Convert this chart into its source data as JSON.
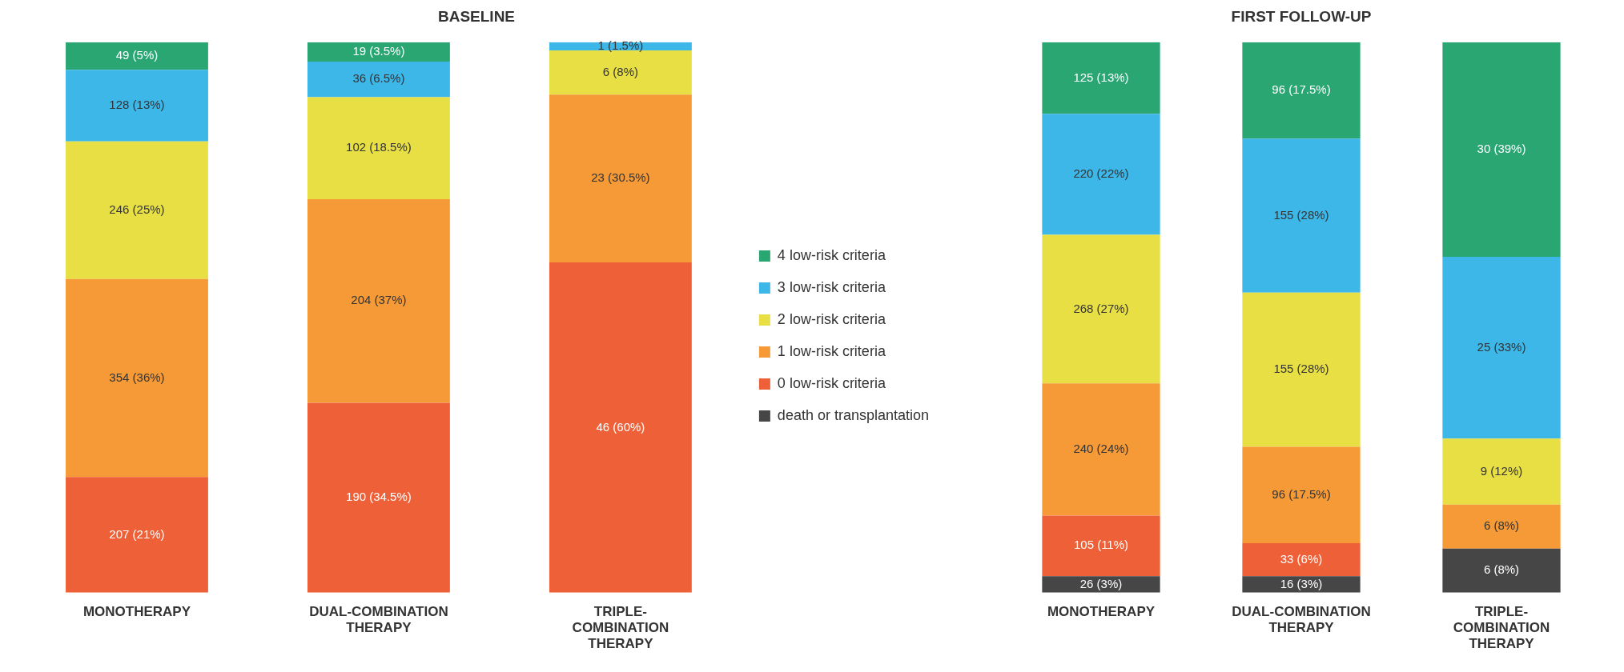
{
  "chart_data": [
    {
      "type": "bar",
      "title": "BASELINE",
      "stacked": true,
      "categories": [
        "MONOTHERAPY",
        "DUAL-COMBINATION THERAPY",
        "TRIPLE-COMBINATION THERAPY"
      ],
      "ylim": [
        0,
        100
      ],
      "tick_labels": "x",
      "grid": false,
      "legend": "right",
      "series": [
        {
          "name": "death or transplantation",
          "color": "#464646",
          "values": [
            null,
            null,
            null
          ],
          "value_labels": [
            null,
            null,
            null
          ]
        },
        {
          "name": "0 low-risk criteria",
          "color": "#ee6038",
          "values": [
            21,
            34.5,
            60
          ],
          "value_labels": [
            "207 (21%)",
            "190 (34.5%)",
            "46 (60%)"
          ]
        },
        {
          "name": "1 low-risk criteria",
          "color": "#f59a36",
          "values": [
            36,
            37,
            30.5
          ],
          "value_labels": [
            "354 (36%)",
            "204 (37%)",
            "23 (30.5%)"
          ]
        },
        {
          "name": "2 low-risk criteria",
          "color": "#e8df44",
          "values": [
            25,
            18.5,
            8
          ],
          "value_labels": [
            "246 (25%)",
            "102 (18.5%)",
            "6 (8%)"
          ]
        },
        {
          "name": "3 low-risk criteria",
          "color": "#3db6e8",
          "values": [
            13,
            6.5,
            1.5
          ],
          "value_labels": [
            "128 (13%)",
            "36 (6.5%)",
            "1 (1.5%)"
          ]
        },
        {
          "name": "4 low-risk criteria",
          "color": "#2aa673",
          "values": [
            5,
            3.5,
            null
          ],
          "value_labels": [
            "49 (5%)",
            "19 (3.5%)",
            null
          ]
        }
      ]
    },
    {
      "type": "bar",
      "title": "FIRST FOLLOW-UP",
      "stacked": true,
      "categories": [
        "MONOTHERAPY",
        "DUAL-COMBINATION THERAPY",
        "TRIPLE-COMBINATION THERAPY"
      ],
      "ylim": [
        0,
        100
      ],
      "tick_labels": "x",
      "grid": false,
      "legend": false,
      "series": [
        {
          "color": "#464646",
          "values": [
            3,
            3,
            8
          ],
          "value_labels": [
            "26 (3%)",
            "16 (3%)",
            "6 (8%)"
          ]
        },
        {
          "color": "#ee6038",
          "values": [
            11,
            6,
            null
          ],
          "value_labels": [
            "105 (11%)",
            "33 (6%)",
            null
          ]
        },
        {
          "color": "#f59a36",
          "values": [
            24,
            17.5,
            8
          ],
          "value_labels": [
            "240 (24%)",
            "96 (17.5%)",
            "6 (8%)"
          ]
        },
        {
          "color": "#e8df44",
          "values": [
            27,
            28,
            12
          ],
          "value_labels": [
            "268 (27%)",
            "155 (28%)",
            "9 (12%)"
          ]
        },
        {
          "color": "#3db6e8",
          "values": [
            22,
            28,
            33
          ],
          "value_labels": [
            "220 (22%)",
            "155 (28%)",
            "25 (33%)"
          ]
        },
        {
          "color": "#2aa673",
          "values": [
            13,
            17.5,
            39
          ],
          "value_labels": [
            "125 (13%)",
            "96 (17.5%)",
            "30 (39%)"
          ]
        }
      ]
    }
  ]
}
